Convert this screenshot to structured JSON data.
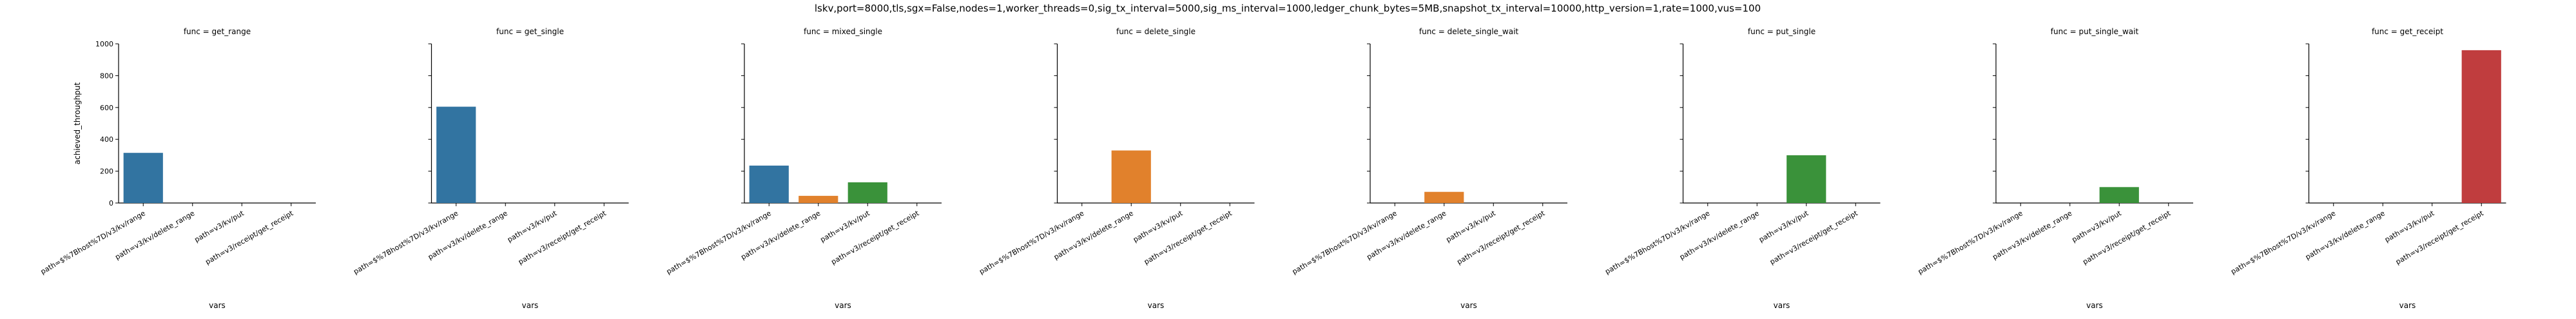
{
  "chart_data": {
    "type": "bar",
    "suptitle": "lskv,port=8000,tls,sgx=False,nodes=1,worker_threads=0,sig_tx_interval=5000,sig_ms_interval=1000,ledger_chunk_bytes=5MB,snapshot_tx_interval=10000,http_version=1,rate=1000,vus=100",
    "xlabel": "vars",
    "ylabel": "achieved_throughput",
    "ylim": [
      0,
      1000
    ],
    "yticks": [
      "0",
      "200",
      "400",
      "600",
      "800",
      "1000"
    ],
    "categories": [
      "path=$%7Bhost%7D/v3/kv/range",
      "path=v3/kv/delete_range",
      "path=v3/kv/put",
      "path=v3/receipt/get_receipt"
    ],
    "hue_colors": [
      "#3274a1",
      "#e1812c",
      "#3a923a",
      "#c03d3e"
    ],
    "panels": [
      {
        "title": "func = get_range",
        "values": [
          315,
          null,
          null,
          null
        ]
      },
      {
        "title": "func = get_single",
        "values": [
          605,
          null,
          null,
          null
        ]
      },
      {
        "title": "func = mixed_single",
        "values": [
          235,
          45,
          130,
          null
        ]
      },
      {
        "title": "func = delete_single",
        "values": [
          null,
          330,
          null,
          null
        ]
      },
      {
        "title": "func = delete_single_wait",
        "values": [
          null,
          70,
          null,
          null
        ]
      },
      {
        "title": "func = put_single",
        "values": [
          null,
          null,
          300,
          null
        ]
      },
      {
        "title": "func = put_single_wait",
        "values": [
          null,
          null,
          100,
          null
        ]
      },
      {
        "title": "func = get_receipt",
        "values": [
          null,
          null,
          null,
          960
        ]
      }
    ]
  }
}
